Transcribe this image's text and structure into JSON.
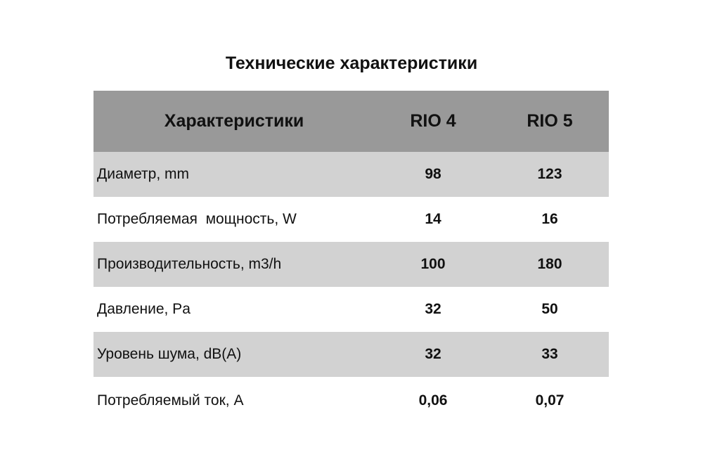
{
  "title": "Технические характеристики",
  "colors": {
    "header_bg": "#999999",
    "stripe_bg": "#d2d2d2"
  },
  "table": {
    "headers": [
      "Характеристики",
      "RIO 4",
      "RIO 5"
    ],
    "rows": [
      [
        "Диаметр, mm",
        "98",
        "123"
      ],
      [
        "Потребляемая  мощность, W",
        "14",
        "16"
      ],
      [
        "Производительность, m3/h",
        "100",
        "180"
      ],
      [
        "Давление, Pa",
        "32",
        "50"
      ],
      [
        "Уровень шума, dB(A)",
        "32",
        "33"
      ],
      [
        "Потребляемый ток, A",
        "0,06",
        "0,07"
      ]
    ]
  }
}
